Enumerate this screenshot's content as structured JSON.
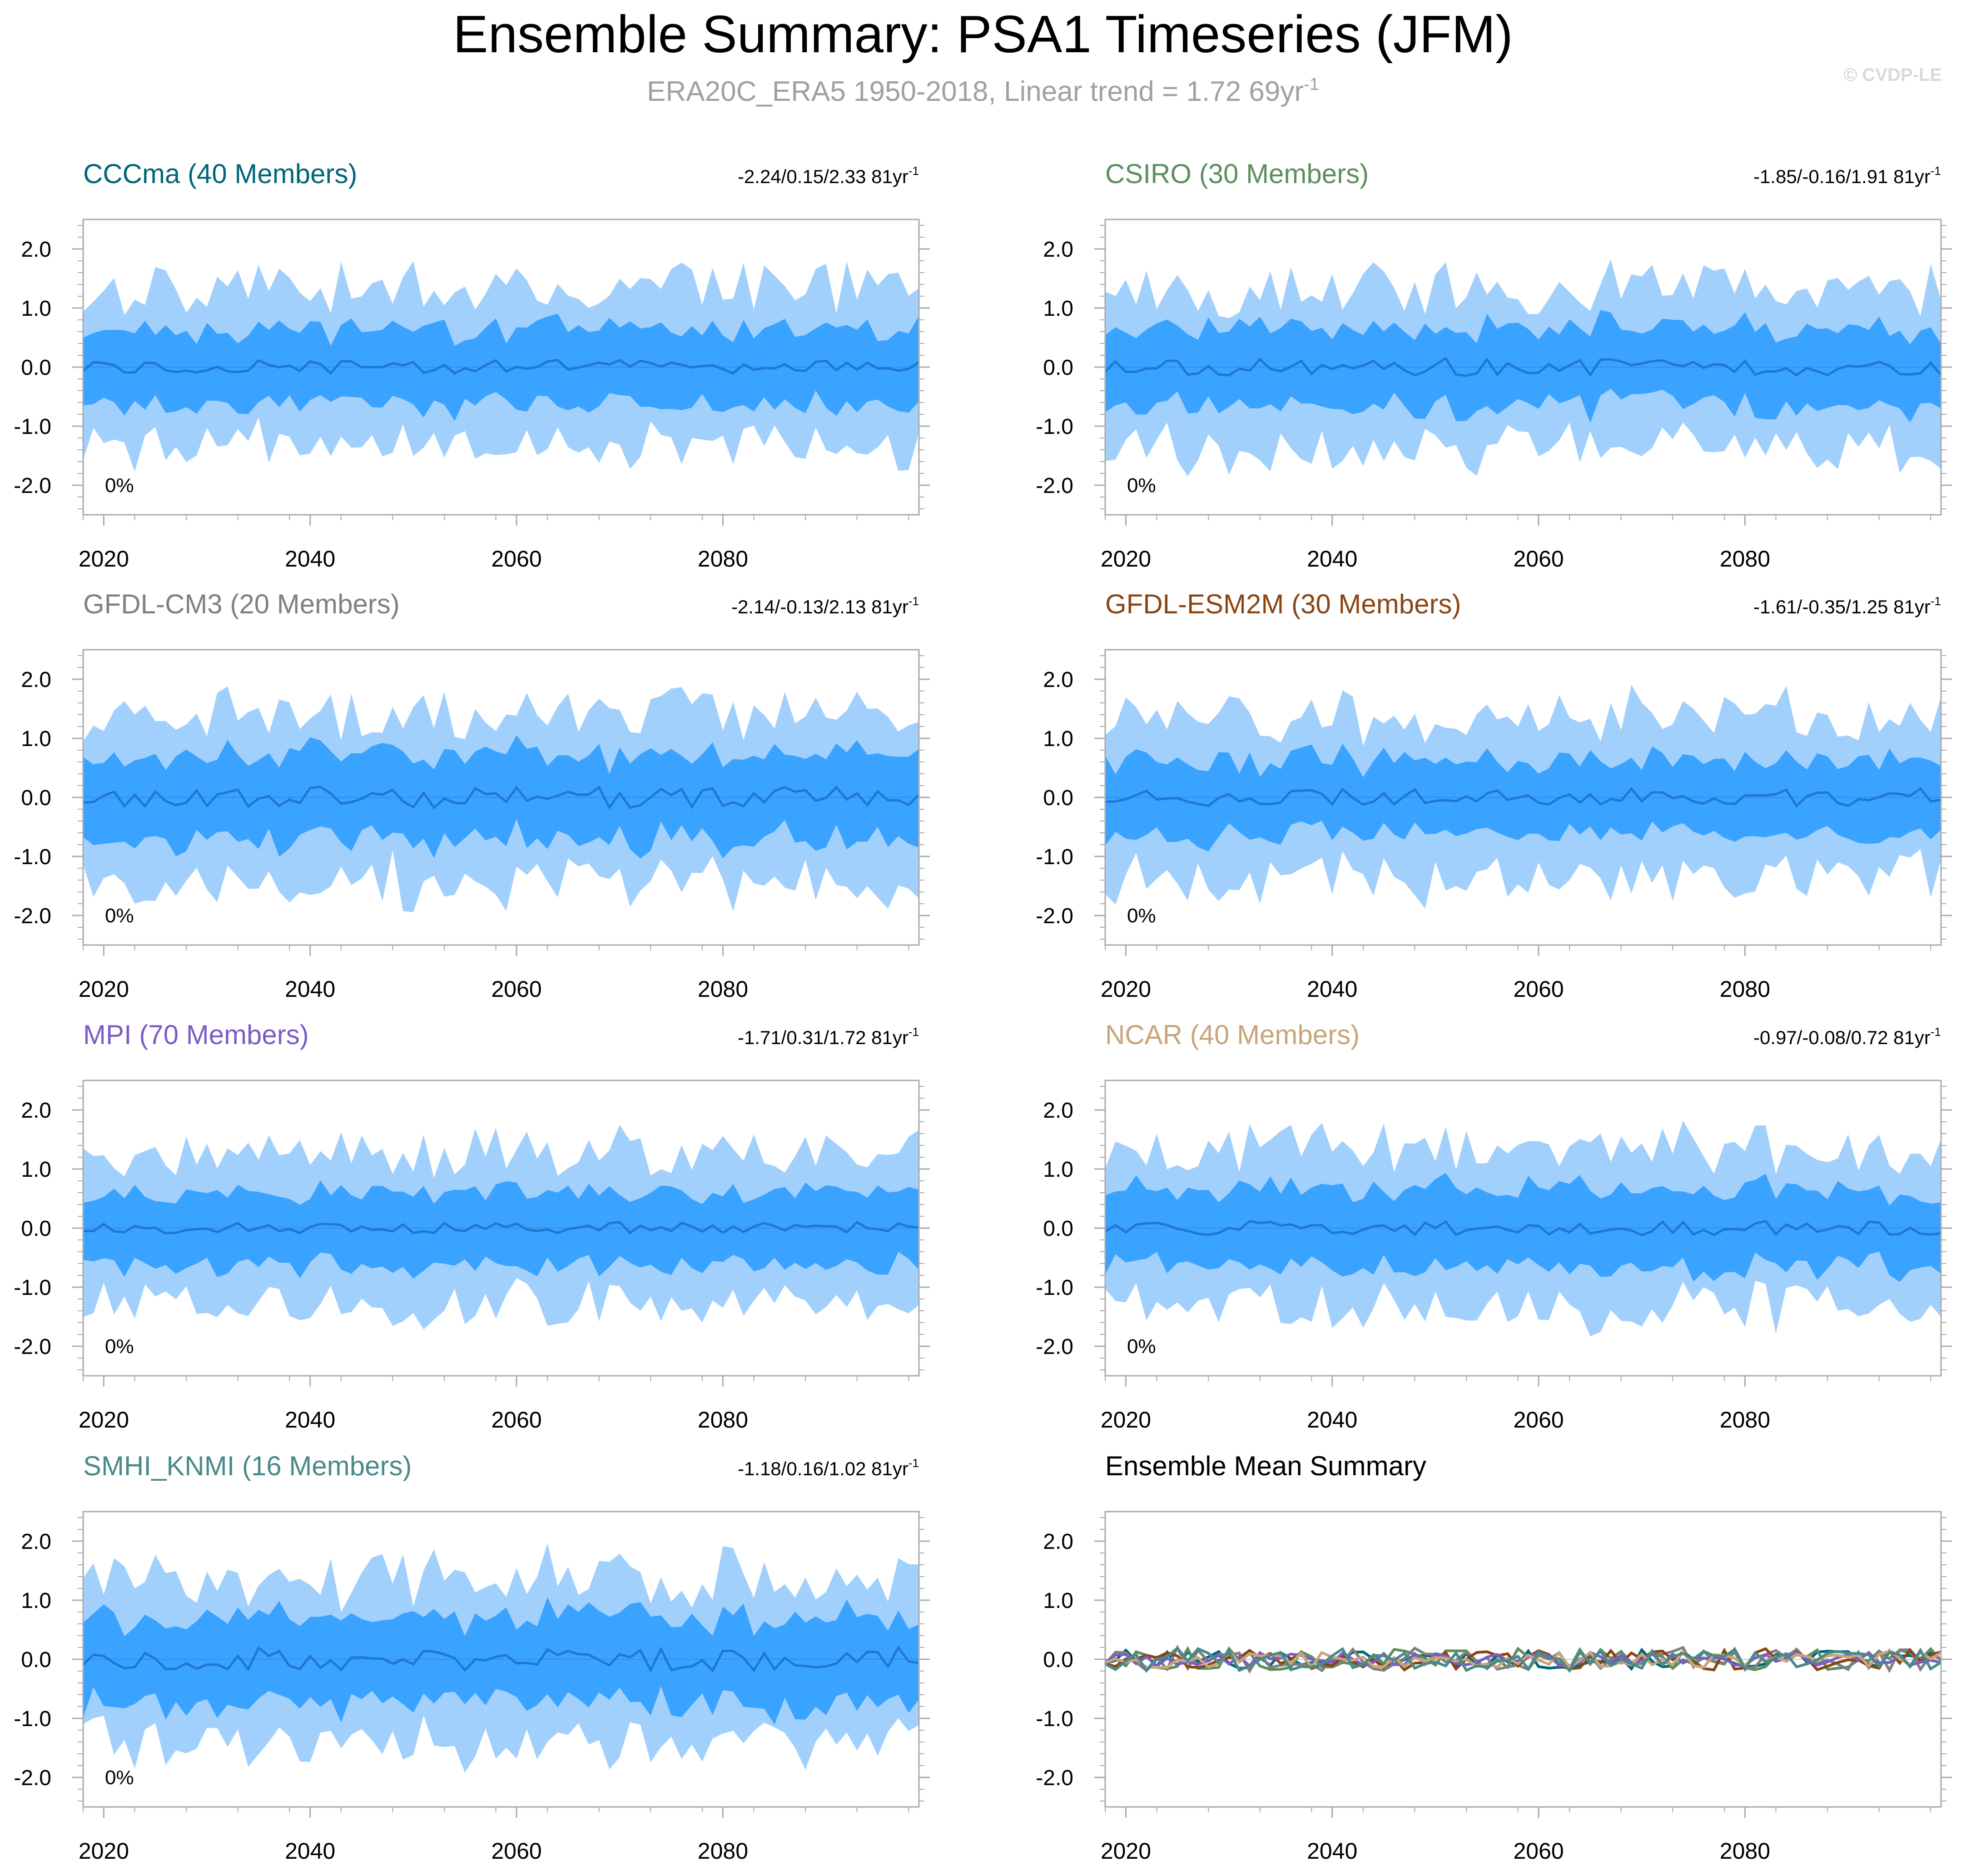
{
  "figure": {
    "title": "Ensemble Summary: PSA1 Timeseries (JFM)",
    "subtitle": "ERA20C_ERA5 1950-2018, Linear trend = 1.72 69yr",
    "subtitle_sup": "-1",
    "watermark": "© CVDP-LE",
    "colors": {
      "band_outer": "#a2d0fc",
      "band_inner": "#3aa2ff",
      "mean_line": "#1e78d0",
      "frame": "#aaaaaa",
      "subtitle": "#a0a0a0",
      "watermark": "#d8d8d8"
    }
  },
  "chart_data": [
    {
      "type": "area",
      "title": "CCCma (40 Members)",
      "title_color": "#00667a",
      "stats": "-2.24/0.15/2.33 81yr",
      "stats_sup": "-1",
      "percent": "0%",
      "xlim": [
        2018,
        2099
      ],
      "ylim": [
        -2.5,
        2.5
      ],
      "xticks": [
        2020,
        2040,
        2060,
        2080
      ],
      "yticks": [
        2.0,
        1.0,
        0.0,
        -1.0,
        -2.0
      ],
      "ytick_labels": [
        "2.0",
        "1.0",
        "0.0",
        "-1.0",
        "-2.0"
      ],
      "grid": false,
      "x": [
        2018,
        2099
      ],
      "series": [
        {
          "role": "outer-range",
          "seed": 11,
          "outer_amp": 1.45,
          "inner_amp": 0.62,
          "mean_amp": 0.12
        },
        {
          "role": "inner-range"
        },
        {
          "role": "ensemble-mean"
        }
      ]
    },
    {
      "type": "area",
      "title": "CSIRO (30 Members)",
      "title_color": "#5c8f5c",
      "stats": "-1.85/-0.16/1.91 81yr",
      "stats_sup": "-1",
      "percent": "0%",
      "xlim": [
        2018,
        2099
      ],
      "ylim": [
        -2.5,
        2.5
      ],
      "xticks": [
        2020,
        2040,
        2060,
        2080
      ],
      "yticks": [
        2.0,
        1.0,
        0.0,
        -1.0,
        -2.0
      ],
      "ytick_labels": [
        "2.0",
        "1.0",
        "0.0",
        "-1.0",
        "-2.0"
      ],
      "grid": false,
      "x": [
        2018,
        2099
      ],
      "series": [
        {
          "role": "outer-range",
          "seed": 23,
          "outer_amp": 1.45,
          "inner_amp": 0.65,
          "mean_amp": 0.15
        },
        {
          "role": "inner-range"
        },
        {
          "role": "ensemble-mean"
        }
      ]
    },
    {
      "type": "area",
      "title": "GFDL-CM3 (20 Members)",
      "title_color": "#808080",
      "stats": "-2.14/-0.13/2.13 81yr",
      "stats_sup": "-1",
      "percent": "0%",
      "xlim": [
        2018,
        2099
      ],
      "ylim": [
        -2.5,
        2.5
      ],
      "xticks": [
        2020,
        2040,
        2060,
        2080
      ],
      "yticks": [
        2.0,
        1.0,
        0.0,
        -1.0,
        -2.0
      ],
      "ytick_labels": [
        "2.0",
        "1.0",
        "0.0",
        "-1.0",
        "-2.0"
      ],
      "grid": false,
      "x": [
        2018,
        2099
      ],
      "series": [
        {
          "role": "outer-range",
          "seed": 37,
          "outer_amp": 1.55,
          "inner_amp": 0.7,
          "mean_amp": 0.18
        },
        {
          "role": "inner-range"
        },
        {
          "role": "ensemble-mean"
        }
      ]
    },
    {
      "type": "area",
      "title": "GFDL-ESM2M (30 Members)",
      "title_color": "#8b4513",
      "stats": "-1.61/-0.35/1.25 81yr",
      "stats_sup": "-1",
      "percent": "0%",
      "xlim": [
        2018,
        2099
      ],
      "ylim": [
        -2.5,
        2.5
      ],
      "xticks": [
        2020,
        2040,
        2060,
        2080
      ],
      "yticks": [
        2.0,
        1.0,
        0.0,
        -1.0,
        -2.0
      ],
      "ytick_labels": [
        "2.0",
        "1.0",
        "0.0",
        "-1.0",
        "-2.0"
      ],
      "grid": false,
      "x": [
        2018,
        2099
      ],
      "series": [
        {
          "role": "outer-range",
          "seed": 41,
          "outer_amp": 1.5,
          "inner_amp": 0.6,
          "mean_amp": 0.15
        },
        {
          "role": "inner-range"
        },
        {
          "role": "ensemble-mean"
        }
      ]
    },
    {
      "type": "area",
      "title": "MPI (70 Members)",
      "title_color": "#7b5cc9",
      "stats": "-1.71/0.31/1.72 81yr",
      "stats_sup": "-1",
      "percent": "0%",
      "xlim": [
        2018,
        2099
      ],
      "ylim": [
        -2.5,
        2.5
      ],
      "xticks": [
        2020,
        2040,
        2060,
        2080
      ],
      "yticks": [
        2.0,
        1.0,
        0.0,
        -1.0,
        -2.0
      ],
      "ytick_labels": [
        "2.0",
        "1.0",
        "0.0",
        "-1.0",
        "-2.0"
      ],
      "grid": false,
      "x": [
        2018,
        2099
      ],
      "series": [
        {
          "role": "outer-range",
          "seed": 53,
          "outer_amp": 1.4,
          "inner_amp": 0.6,
          "mean_amp": 0.1
        },
        {
          "role": "inner-range"
        },
        {
          "role": "ensemble-mean"
        }
      ]
    },
    {
      "type": "area",
      "title": "NCAR (40 Members)",
      "title_color": "#c8a57a",
      "stats": "-0.97/-0.08/0.72 81yr",
      "stats_sup": "-1",
      "percent": "0%",
      "xlim": [
        2018,
        2099
      ],
      "ylim": [
        -2.5,
        2.5
      ],
      "xticks": [
        2020,
        2040,
        2060,
        2080
      ],
      "yticks": [
        2.0,
        1.0,
        0.0,
        -1.0,
        -2.0
      ],
      "ytick_labels": [
        "2.0",
        "1.0",
        "0.0",
        "-1.0",
        "-2.0"
      ],
      "grid": false,
      "x": [
        2018,
        2099
      ],
      "series": [
        {
          "role": "outer-range",
          "seed": 67,
          "outer_amp": 1.45,
          "inner_amp": 0.65,
          "mean_amp": 0.12
        },
        {
          "role": "inner-range"
        },
        {
          "role": "ensemble-mean"
        }
      ]
    },
    {
      "type": "area",
      "title": "SMHI_KNMI (16 Members)",
      "title_color": "#4a8a8a",
      "stats": "-1.18/0.16/1.02 81yr",
      "stats_sup": "-1",
      "percent": "0%",
      "xlim": [
        2018,
        2099
      ],
      "ylim": [
        -2.5,
        2.5
      ],
      "xticks": [
        2020,
        2040,
        2060,
        2080
      ],
      "yticks": [
        2.0,
        1.0,
        0.0,
        -1.0,
        -2.0
      ],
      "ytick_labels": [
        "2.0",
        "1.0",
        "0.0",
        "-1.0",
        "-2.0"
      ],
      "grid": false,
      "x": [
        2018,
        2099
      ],
      "series": [
        {
          "role": "outer-range",
          "seed": 79,
          "outer_amp": 1.5,
          "inner_amp": 0.72,
          "mean_amp": 0.2
        },
        {
          "role": "inner-range"
        },
        {
          "role": "ensemble-mean"
        }
      ]
    },
    {
      "type": "line",
      "title": "Ensemble Mean Summary",
      "title_color": "#000000",
      "stats": "",
      "xlim": [
        2018,
        2099
      ],
      "ylim": [
        -2.5,
        2.5
      ],
      "xticks": [
        2020,
        2040,
        2060,
        2080
      ],
      "yticks": [
        2.0,
        1.0,
        0.0,
        -1.0,
        -2.0
      ],
      "ytick_labels": [
        "2.0",
        "1.0",
        "0.0",
        "-1.0",
        "-2.0"
      ],
      "grid": false,
      "x": [
        2018,
        2099
      ],
      "series": [
        {
          "color": "#00667a",
          "seed": 101,
          "amp": 0.16
        },
        {
          "color": "#5c8f5c",
          "seed": 113,
          "amp": 0.18
        },
        {
          "color": "#808080",
          "seed": 127,
          "amp": 0.2
        },
        {
          "color": "#8b4513",
          "seed": 131,
          "amp": 0.18
        },
        {
          "color": "#7b5cc9",
          "seed": 149,
          "amp": 0.12
        },
        {
          "color": "#c8a57a",
          "seed": 157,
          "amp": 0.14
        },
        {
          "color": "#4a8a8a",
          "seed": 163,
          "amp": 0.2
        }
      ]
    }
  ]
}
